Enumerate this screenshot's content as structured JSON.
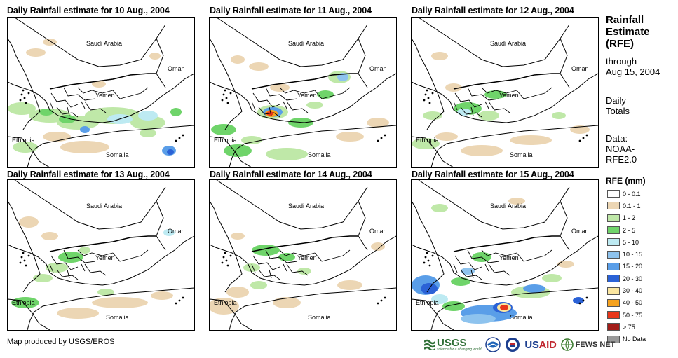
{
  "panels": [
    {
      "title": "Daily Rainfall estimate for 10 Aug., 2004"
    },
    {
      "title": "Daily Rainfall estimate for 11 Aug., 2004"
    },
    {
      "title": "Daily Rainfall estimate for 12 Aug., 2004"
    },
    {
      "title": "Daily Rainfall estimate for 13 Aug., 2004"
    },
    {
      "title": "Daily Rainfall estimate for 14 Aug., 2004"
    },
    {
      "title": "Daily Rainfall estimate for 15 Aug., 2004"
    }
  ],
  "map_labels": {
    "saudi": "Saudi Arabia",
    "oman": "Oman",
    "yemen": "Yemen",
    "ethiopia": "Ethiopia",
    "somalia": "Somalia"
  },
  "sidebar": {
    "title_lines": [
      "Rainfall",
      "Estimate",
      "(RFE)"
    ],
    "through": "through",
    "date": "Aug 15, 2004",
    "daily": "Daily",
    "totals": "Totals",
    "data_label": "Data:",
    "source1": "NOAA-",
    "source2": "RFE2.0"
  },
  "legend": {
    "title": "RFE (mm)",
    "items": [
      {
        "label": "0 - 0.1",
        "color": "#ffffff"
      },
      {
        "label": "0.1 - 1",
        "color": "#ecd6b4"
      },
      {
        "label": "1 - 2",
        "color": "#bfe8a8"
      },
      {
        "label": "2 - 5",
        "color": "#6fd46a"
      },
      {
        "label": "5 - 10",
        "color": "#bdeaf2"
      },
      {
        "label": "10 - 15",
        "color": "#8ec3ee"
      },
      {
        "label": "15 - 20",
        "color": "#5a9ee8"
      },
      {
        "label": "20 - 30",
        "color": "#2b62d6"
      },
      {
        "label": "30 - 40",
        "color": "#fbe6a0"
      },
      {
        "label": "40 - 50",
        "color": "#f6a21e"
      },
      {
        "label": "50 - 75",
        "color": "#e8361a"
      },
      {
        "label": "> 75",
        "color": "#a21c18"
      },
      {
        "label": "No Data",
        "color": "#9a9a9a"
      }
    ]
  },
  "footer": {
    "credit": "Map produced by USGS/EROS",
    "usgs": "USGS",
    "usgs_tagline": "science for a changing world",
    "usaid": "USAID",
    "fews": "FEWS NET"
  }
}
